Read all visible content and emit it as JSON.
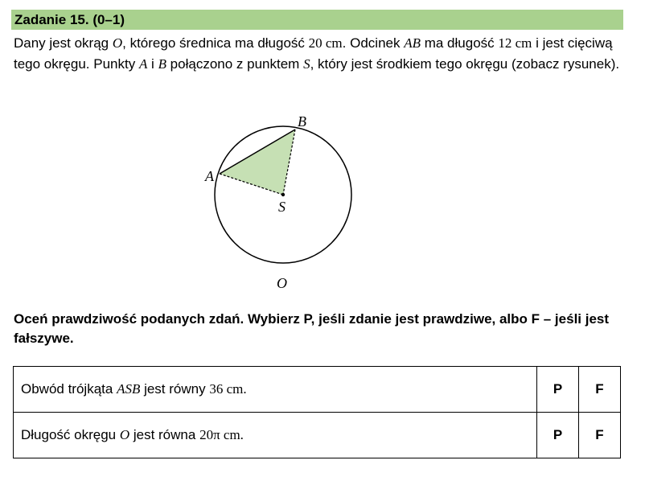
{
  "task": {
    "title": "Zadanie 15. (0–1)",
    "intro": {
      "p1": "Dany jest okrąg ",
      "circle_name_1": "O",
      "p2": ", którego średnica ma długość ",
      "diameter": "20 cm",
      "p3": ". Odcinek ",
      "chord_name": "AB",
      "p4": " ma długość ",
      "chord_length": "12 cm",
      "p5": " i jest cięciwą tego okręgu. Punkty ",
      "point_a": "A",
      "conj": " i ",
      "point_b": "B",
      "p6": " połączono z punktem ",
      "point_s": "S",
      "p7": ", który jest środkiem tego okręgu (zobacz rysunek)."
    },
    "instruction": "Oceń prawdziwość podanych zdań. Wybierz P, jeśli zdanie jest prawdziwe, albo F – jeśli jest fałszywe."
  },
  "figure": {
    "label_a": "A",
    "label_b": "B",
    "label_s": "S",
    "label_o": "O",
    "fill_color": "#c6e0b4",
    "stroke_color": "#000000"
  },
  "statements": [
    {
      "pre": "Obwód trójkąta ",
      "math": "ASB",
      "mid": " jest równy ",
      "value": "36 cm.",
      "option_p": "P",
      "option_f": "F"
    },
    {
      "pre": "Długość okręgu ",
      "math": "O",
      "mid": " jest równa ",
      "value": "20π cm.",
      "option_p": "P",
      "option_f": "F"
    }
  ]
}
